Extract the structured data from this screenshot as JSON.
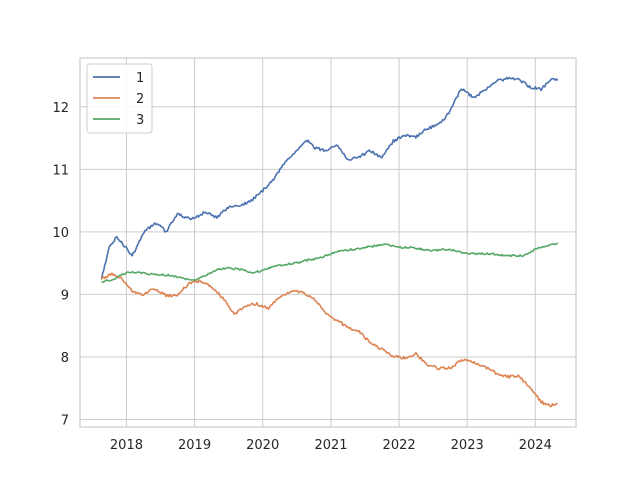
{
  "chart_data": {
    "type": "line",
    "title": "",
    "xlabel": "",
    "ylabel": "",
    "x_ticks": [
      "2018",
      "2019",
      "2020",
      "2021",
      "2022",
      "2023",
      "2024"
    ],
    "y_ticks": [
      "7",
      "8",
      "9",
      "10",
      "11",
      "12"
    ],
    "xlim": [
      "2017-04-27",
      "2024-08-06"
    ],
    "ylim": [
      6.88,
      12.78
    ],
    "grid": true,
    "legend": "upper-left",
    "series": [
      {
        "name": "1",
        "color": "#4c72b0",
        "x": [
          "2017-08-20",
          "2017-10-01",
          "2017-11-10",
          "2017-12-20",
          "2018-02-01",
          "2018-04-10",
          "2018-06-15",
          "2018-08-01",
          "2018-10-01",
          "2018-12-15",
          "2019-03-01",
          "2019-05-01",
          "2019-07-01",
          "2019-09-01",
          "2019-11-01",
          "2020-01-01",
          "2020-03-01",
          "2020-05-01",
          "2020-07-01",
          "2020-08-20",
          "2020-10-01",
          "2020-12-01",
          "2021-02-01",
          "2021-04-01",
          "2021-06-01",
          "2021-08-01",
          "2021-10-01",
          "2021-12-01",
          "2022-02-01",
          "2022-04-01",
          "2022-06-01",
          "2022-08-01",
          "2022-10-01",
          "2022-12-01",
          "2023-02-01",
          "2023-04-01",
          "2023-06-01",
          "2023-08-01",
          "2023-10-01",
          "2023-12-01",
          "2024-02-01",
          "2024-04-01",
          "2024-04-30"
        ],
        "values": [
          9.25,
          9.75,
          9.92,
          9.78,
          9.62,
          10.02,
          10.15,
          10.0,
          10.28,
          10.2,
          10.32,
          10.22,
          10.4,
          10.42,
          10.5,
          10.66,
          10.85,
          11.12,
          11.3,
          11.48,
          11.35,
          11.3,
          11.4,
          11.15,
          11.2,
          11.3,
          11.18,
          11.45,
          11.55,
          11.52,
          11.65,
          11.72,
          11.92,
          12.3,
          12.15,
          12.25,
          12.4,
          12.45,
          12.44,
          12.32,
          12.28,
          12.45,
          12.42
        ]
      },
      {
        "name": "2",
        "color": "#dd8452",
        "x": [
          "2017-08-20",
          "2017-10-15",
          "2017-12-01",
          "2018-02-01",
          "2018-04-01",
          "2018-06-01",
          "2018-08-01",
          "2018-10-01",
          "2018-12-01",
          "2019-02-01",
          "2019-04-01",
          "2019-06-01",
          "2019-08-01",
          "2019-10-01",
          "2019-12-01",
          "2020-02-01",
          "2020-04-01",
          "2020-06-01",
          "2020-08-01",
          "2020-10-01",
          "2020-12-01",
          "2021-02-01",
          "2021-04-01",
          "2021-06-01",
          "2021-08-01",
          "2021-10-01",
          "2021-12-01",
          "2022-02-01",
          "2022-04-01",
          "2022-06-01",
          "2022-08-01",
          "2022-10-01",
          "2022-12-01",
          "2023-02-01",
          "2023-04-01",
          "2023-06-01",
          "2023-08-01",
          "2023-10-01",
          "2023-12-01",
          "2024-02-01",
          "2024-03-20",
          "2024-04-30"
        ],
        "values": [
          9.25,
          9.32,
          9.28,
          9.05,
          9.0,
          9.1,
          8.98,
          8.98,
          9.18,
          9.22,
          9.12,
          8.95,
          8.68,
          8.82,
          8.85,
          8.78,
          8.95,
          9.05,
          9.05,
          8.92,
          8.72,
          8.58,
          8.48,
          8.4,
          8.22,
          8.12,
          8.02,
          7.98,
          8.05,
          7.88,
          7.82,
          7.82,
          7.95,
          7.92,
          7.85,
          7.75,
          7.68,
          7.7,
          7.52,
          7.28,
          7.22,
          7.25
        ]
      },
      {
        "name": "3",
        "color": "#55a868",
        "x": [
          "2017-08-20",
          "2017-11-01",
          "2018-01-01",
          "2018-03-01",
          "2018-05-01",
          "2018-07-01",
          "2018-09-01",
          "2018-11-01",
          "2019-01-01",
          "2019-03-01",
          "2019-05-01",
          "2019-07-01",
          "2019-09-01",
          "2019-11-01",
          "2020-01-01",
          "2020-03-01",
          "2020-05-01",
          "2020-07-01",
          "2020-09-01",
          "2020-11-01",
          "2021-01-01",
          "2021-03-01",
          "2021-05-01",
          "2021-07-01",
          "2021-09-01",
          "2021-11-01",
          "2022-01-01",
          "2022-03-01",
          "2022-05-01",
          "2022-07-01",
          "2022-09-01",
          "2022-11-01",
          "2023-01-01",
          "2023-03-01",
          "2023-05-01",
          "2023-07-01",
          "2023-09-01",
          "2023-11-01",
          "2024-01-01",
          "2024-03-01",
          "2024-04-30"
        ],
        "values": [
          9.2,
          9.25,
          9.35,
          9.36,
          9.33,
          9.32,
          9.3,
          9.25,
          9.22,
          9.3,
          9.4,
          9.42,
          9.4,
          9.35,
          9.38,
          9.45,
          9.48,
          9.5,
          9.55,
          9.58,
          9.65,
          9.7,
          9.72,
          9.75,
          9.78,
          9.8,
          9.75,
          9.75,
          9.72,
          9.7,
          9.72,
          9.7,
          9.65,
          9.65,
          9.65,
          9.63,
          9.62,
          9.62,
          9.72,
          9.78,
          9.82
        ]
      }
    ]
  }
}
